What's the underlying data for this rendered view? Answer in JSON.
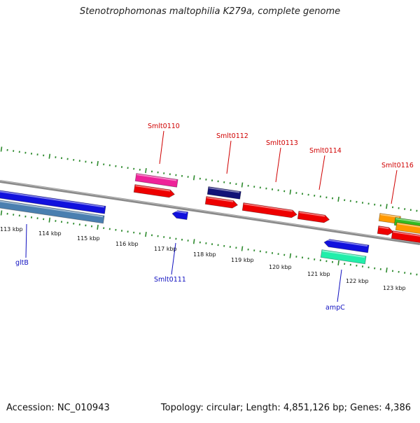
{
  "title": "Stenotrophomonas maltophilia K279a, complete genome",
  "footer": {
    "accession": "Accession: NC_010943",
    "summary": "Topology: circular; Length: 4,851,126 bp; Genes: 4,386"
  },
  "scale_labels": [
    "113 kbp",
    "114 kbp",
    "115 kbp",
    "116 kbp",
    "117 kbp",
    "118 kbp",
    "119 kbp",
    "120 kbp",
    "121 kbp",
    "122 kbp",
    "123 kbp"
  ],
  "gene_labels": [
    {
      "text": "Smlt0110",
      "color": "#d00000"
    },
    {
      "text": "Smlt0112",
      "color": "#d00000"
    },
    {
      "text": "Smlt0113",
      "color": "#d00000"
    },
    {
      "text": "Smlt0114",
      "color": "#d00000"
    },
    {
      "text": "Smlt0116",
      "color": "#d00000"
    },
    {
      "text": "gltB",
      "color": "#1010c0"
    },
    {
      "text": "Smlt0111",
      "color": "#1010c0"
    },
    {
      "text": "ampC",
      "color": "#1010c0"
    }
  ],
  "colors": {
    "backbone": "#8a8a8a",
    "ticks": "#2e8b2e",
    "red": "#ee0000",
    "blue": "#1111dd",
    "steel": "#4a7fb0",
    "pink": "#ee2299",
    "navy": "#111177",
    "teal": "#22eeaa",
    "orange": "#ff9900",
    "green": "#33bb22"
  }
}
